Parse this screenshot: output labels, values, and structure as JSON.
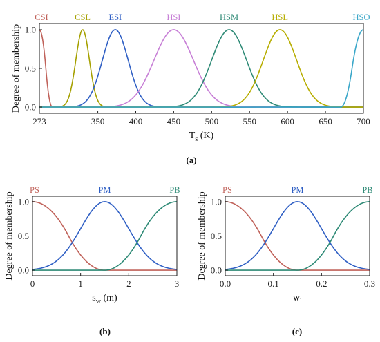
{
  "figure": {
    "panels": [
      {
        "id": "a",
        "caption": "(a)",
        "chart_index": 0
      },
      {
        "id": "b",
        "caption": "(b)",
        "chart_index": 1
      },
      {
        "id": "c",
        "caption": "(c)",
        "chart_index": 2
      }
    ]
  },
  "chart_data": [
    {
      "type": "line",
      "title": "",
      "xlabel": "T",
      "xlabel_sub": "s",
      "xlabel_unit": " (K)",
      "ylabel": "Degree of membership",
      "xlim": [
        273,
        700
      ],
      "ylim": [
        -0.08,
        1.08
      ],
      "xticks": [
        273,
        350,
        400,
        450,
        500,
        550,
        600,
        650,
        700
      ],
      "yticks": [
        0.0,
        0.5,
        1.0
      ],
      "ytick_labels": [
        "0.0",
        "0.5",
        "1.0"
      ],
      "grid": false,
      "legend": "labels above peaks",
      "series": [
        {
          "name": "CSI",
          "type": "zmf",
          "params": [
            273,
            290
          ],
          "color": "#c0625a"
        },
        {
          "name": "CSL",
          "type": "gauss",
          "center": 330,
          "sigma": 9,
          "color": "#a5a000"
        },
        {
          "name": "ESI",
          "type": "gauss",
          "center": 373,
          "sigma": 17,
          "color": "#2f5fc4"
        },
        {
          "name": "HSI",
          "type": "gauss",
          "center": 450,
          "sigma": 26,
          "color": "#c77fd6"
        },
        {
          "name": "HSM",
          "type": "gauss",
          "center": 523,
          "sigma": 23,
          "color": "#2e8a76"
        },
        {
          "name": "HSL",
          "type": "gauss",
          "center": 590,
          "sigma": 22,
          "color": "#b7ad00"
        },
        {
          "name": "HSO",
          "type": "smf",
          "params": [
            670,
            700
          ],
          "color": "#3aa7c9"
        }
      ]
    },
    {
      "type": "line",
      "title": "",
      "xlabel": "s",
      "xlabel_sub": "w",
      "xlabel_unit": " (m)",
      "ylabel": "Degree of membership",
      "xlim": [
        0,
        3
      ],
      "ylim": [
        -0.08,
        1.08
      ],
      "xticks": [
        0,
        1,
        2,
        3
      ],
      "yticks": [
        0.0,
        0.5,
        1.0
      ],
      "ytick_labels": [
        "0.0",
        "0.5",
        "1.0"
      ],
      "grid": false,
      "legend": "labels above peaks",
      "series": [
        {
          "name": "PS",
          "type": "zmf",
          "params": [
            0,
            1.5
          ],
          "color": "#c0625a"
        },
        {
          "name": "PM",
          "type": "gauss",
          "center": 1.5,
          "sigma": 0.5,
          "color": "#2f5fc4"
        },
        {
          "name": "PB",
          "type": "smf",
          "params": [
            1.5,
            3
          ],
          "color": "#2e8a76"
        }
      ]
    },
    {
      "type": "line",
      "title": "",
      "xlabel": "w",
      "xlabel_sub": "l",
      "xlabel_unit": "",
      "ylabel": "Degree of membership",
      "xlim": [
        0,
        0.3
      ],
      "ylim": [
        -0.08,
        1.08
      ],
      "xticks": [
        0.0,
        0.1,
        0.2,
        0.3
      ],
      "xtick_labels": [
        "0.0",
        "0.1",
        "0.2",
        "0.3"
      ],
      "yticks": [
        0.0,
        0.5,
        1.0
      ],
      "ytick_labels": [
        "0.0",
        "0.5",
        "1.0"
      ],
      "grid": false,
      "legend": "labels above peaks",
      "series": [
        {
          "name": "PS",
          "type": "zmf",
          "params": [
            0,
            0.15
          ],
          "color": "#c0625a"
        },
        {
          "name": "PM",
          "type": "gauss",
          "center": 0.15,
          "sigma": 0.05,
          "color": "#2f5fc4"
        },
        {
          "name": "PB",
          "type": "smf",
          "params": [
            0.15,
            0.3
          ],
          "color": "#2e8a76"
        }
      ]
    }
  ]
}
